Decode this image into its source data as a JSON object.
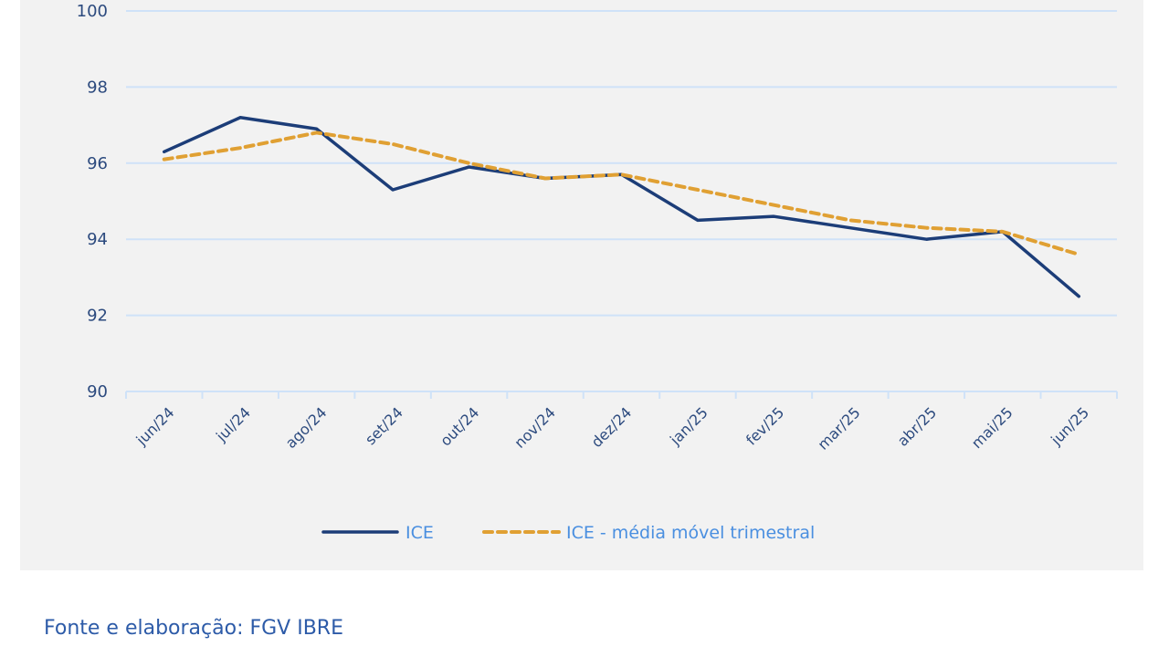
{
  "chart_data": {
    "type": "line",
    "title": "",
    "xlabel": "",
    "ylabel": "",
    "ylim": [
      90,
      100
    ],
    "yticks": [
      90,
      92,
      94,
      96,
      98,
      100
    ],
    "ytick_labels": [
      "90",
      "92",
      "94",
      "96",
      "98",
      "100"
    ],
    "grid": true,
    "legend_position": "bottom",
    "categories": [
      "jun/24",
      "jul/24",
      "ago/24",
      "set/24",
      "out/24",
      "nov/24",
      "dez/24",
      "jan/25",
      "fev/25",
      "mar/25",
      "abr/25",
      "mai/25",
      "jun/25"
    ],
    "series": [
      {
        "name": "ICE",
        "style": "solid",
        "color": "#1c3d78",
        "values": [
          96.3,
          97.2,
          96.9,
          95.3,
          95.9,
          95.6,
          95.7,
          94.5,
          94.6,
          94.3,
          94.0,
          94.2,
          92.5
        ]
      },
      {
        "name": "ICE - média móvel trimestral",
        "style": "dashed",
        "color": "#e0a033",
        "values": [
          96.1,
          96.4,
          96.8,
          96.5,
          96.0,
          95.6,
          95.7,
          95.3,
          94.9,
          94.5,
          94.3,
          94.2,
          93.6
        ]
      }
    ]
  },
  "footer": {
    "source_text": "Fonte e elaboração: FGV IBRE"
  },
  "colors": {
    "panel_background": "#f2f2f2",
    "gridline": "#cfe2f8",
    "tick_label": "#2c4a7e",
    "legend_text": "#4a8fe0",
    "footer_text": "#2d5ba8"
  }
}
